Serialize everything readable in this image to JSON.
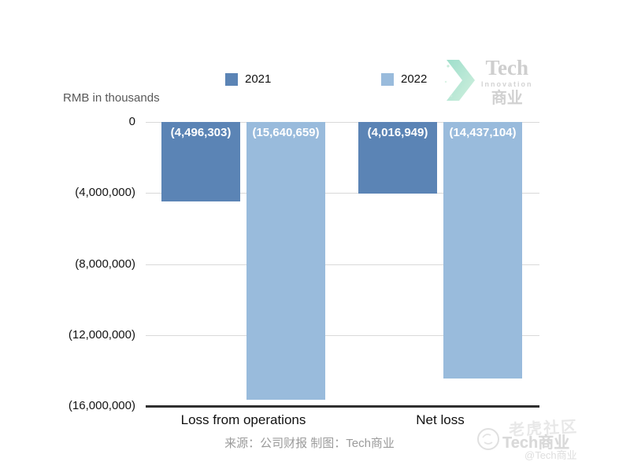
{
  "header": {
    "unit_label": "RMB in thousands"
  },
  "logo": {
    "name": "Tech",
    "subtitle": "Innovation",
    "cn": "商业",
    "chevron_color_start": "#8ed9c3",
    "chevron_color_end": "#c9eed9"
  },
  "chart_data": {
    "type": "bar",
    "categories": [
      "Loss from operations",
      "Net loss"
    ],
    "series": [
      {
        "name": "2021",
        "color": "#5b84b5",
        "values": [
          -4496303,
          -4016949
        ],
        "labels": [
          "(4,496,303)",
          "(4,016,949)"
        ]
      },
      {
        "name": "2022",
        "color": "#99bbdc",
        "values": [
          -15640659,
          -14437104
        ],
        "labels": [
          "(15,640,659)",
          "(14,437,104)"
        ]
      }
    ],
    "ylabel": "RMB in thousands",
    "ylim": [
      -16000000,
      0
    ],
    "ytick_values": [
      0,
      -4000000,
      -8000000,
      -12000000,
      -16000000
    ],
    "ytick_labels": [
      "0",
      "(4,000,000)",
      "(8,000,000)",
      "(12,000,000)",
      "(16,000,000)"
    ],
    "grid": "horizontal",
    "legend_position": "top",
    "bar_label_position": "inside-top",
    "bar_label_color": "#ffffff"
  },
  "footer": {
    "source": "来源：公司财报 制图：Tech商业"
  },
  "watermark": {
    "ghost": "老虎社区",
    "main": "Tech商业",
    "handle": "@Tech商业"
  }
}
